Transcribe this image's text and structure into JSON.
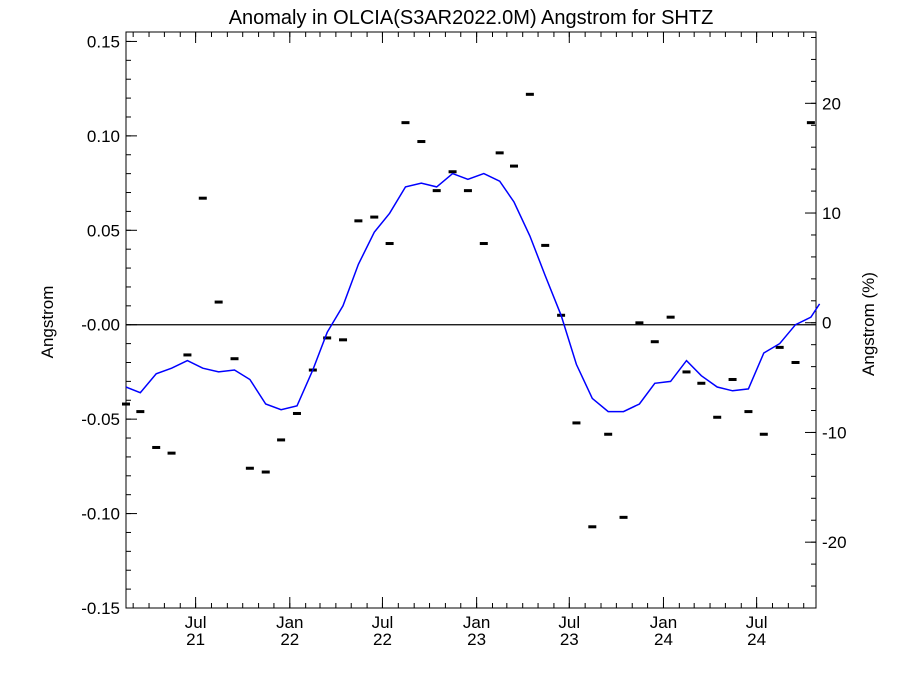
{
  "chart_data": {
    "type": "line",
    "title": "Anomaly in OLCIA(S3AR2022.0M) Angstrom for SHTZ",
    "ylabel": "Angstrom",
    "y2label": "Angstrom (%)",
    "ylim": [
      -0.15,
      0.155
    ],
    "y2lim": [
      -26,
      26.5
    ],
    "xlim": [
      "2021-02-15",
      "2024-10-25"
    ],
    "y_ticks": [
      {
        "value": 0.15,
        "label": "0.15"
      },
      {
        "value": 0.1,
        "label": "0.10"
      },
      {
        "value": 0.05,
        "label": "0.05"
      },
      {
        "value": 0.0,
        "label": "-0.00"
      },
      {
        "value": -0.05,
        "label": "-0.05"
      },
      {
        "value": -0.1,
        "label": "-0.10"
      },
      {
        "value": -0.15,
        "label": "-0.15"
      }
    ],
    "y2_ticks": [
      {
        "value": 20,
        "label": "20"
      },
      {
        "value": 10,
        "label": "10"
      },
      {
        "value": 0,
        "label": "0"
      },
      {
        "value": -10,
        "label": "-10"
      },
      {
        "value": -20,
        "label": "-20"
      }
    ],
    "x_ticks": [
      {
        "date": "2021-07-01",
        "month": "Jul",
        "year": "21"
      },
      {
        "date": "2022-01-01",
        "month": "Jan",
        "year": "22"
      },
      {
        "date": "2022-07-01",
        "month": "Jul",
        "year": "22"
      },
      {
        "date": "2023-01-01",
        "month": "Jan",
        "year": "23"
      },
      {
        "date": "2023-07-01",
        "month": "Jul",
        "year": "23"
      },
      {
        "date": "2024-01-01",
        "month": "Jan",
        "year": "24"
      },
      {
        "date": "2024-07-01",
        "month": "Jul",
        "year": "24"
      }
    ],
    "zero_line": true,
    "series": [
      {
        "kind": "points",
        "color": "#000000",
        "points": [
          {
            "x": "2021-02-15",
            "y": -0.042
          },
          {
            "x": "2021-03-15",
            "y": -0.046
          },
          {
            "x": "2021-04-15",
            "y": -0.065
          },
          {
            "x": "2021-05-15",
            "y": -0.068
          },
          {
            "x": "2021-06-15",
            "y": -0.016
          },
          {
            "x": "2021-07-15",
            "y": 0.067
          },
          {
            "x": "2021-08-15",
            "y": 0.012
          },
          {
            "x": "2021-09-15",
            "y": -0.018
          },
          {
            "x": "2021-10-15",
            "y": -0.076
          },
          {
            "x": "2021-11-15",
            "y": -0.078
          },
          {
            "x": "2021-12-15",
            "y": -0.061
          },
          {
            "x": "2022-01-15",
            "y": -0.047
          },
          {
            "x": "2022-02-15",
            "y": -0.024
          },
          {
            "x": "2022-03-15",
            "y": -0.007
          },
          {
            "x": "2022-04-15",
            "y": -0.008
          },
          {
            "x": "2022-05-15",
            "y": 0.055
          },
          {
            "x": "2022-06-15",
            "y": 0.057
          },
          {
            "x": "2022-07-15",
            "y": 0.043
          },
          {
            "x": "2022-08-15",
            "y": 0.107
          },
          {
            "x": "2022-09-15",
            "y": 0.097
          },
          {
            "x": "2022-10-15",
            "y": 0.071
          },
          {
            "x": "2022-11-15",
            "y": 0.081
          },
          {
            "x": "2022-12-15",
            "y": 0.071
          },
          {
            "x": "2023-01-15",
            "y": 0.043
          },
          {
            "x": "2023-02-15",
            "y": 0.091
          },
          {
            "x": "2023-03-15",
            "y": 0.084
          },
          {
            "x": "2023-04-15",
            "y": 0.122
          },
          {
            "x": "2023-05-15",
            "y": 0.042
          },
          {
            "x": "2023-06-15",
            "y": 0.005
          },
          {
            "x": "2023-07-15",
            "y": -0.052
          },
          {
            "x": "2023-08-15",
            "y": -0.107
          },
          {
            "x": "2023-09-15",
            "y": -0.058
          },
          {
            "x": "2023-10-15",
            "y": -0.102
          },
          {
            "x": "2023-11-15",
            "y": 0.001
          },
          {
            "x": "2023-12-15",
            "y": -0.009
          },
          {
            "x": "2024-01-15",
            "y": 0.004
          },
          {
            "x": "2024-02-15",
            "y": -0.025
          },
          {
            "x": "2024-03-15",
            "y": -0.031
          },
          {
            "x": "2024-04-15",
            "y": -0.049
          },
          {
            "x": "2024-05-15",
            "y": -0.029
          },
          {
            "x": "2024-06-15",
            "y": -0.046
          },
          {
            "x": "2024-07-15",
            "y": -0.058
          },
          {
            "x": "2024-08-15",
            "y": -0.012
          },
          {
            "x": "2024-09-15",
            "y": -0.02
          },
          {
            "x": "2024-10-15",
            "y": 0.107
          }
        ]
      },
      {
        "kind": "line",
        "color": "#0000ff",
        "points": [
          {
            "x": "2021-02-15",
            "y": -0.033
          },
          {
            "x": "2021-03-15",
            "y": -0.036
          },
          {
            "x": "2021-04-15",
            "y": -0.026
          },
          {
            "x": "2021-05-15",
            "y": -0.023
          },
          {
            "x": "2021-06-15",
            "y": -0.019
          },
          {
            "x": "2021-07-15",
            "y": -0.023
          },
          {
            "x": "2021-08-15",
            "y": -0.025
          },
          {
            "x": "2021-09-15",
            "y": -0.024
          },
          {
            "x": "2021-10-15",
            "y": -0.029
          },
          {
            "x": "2021-11-15",
            "y": -0.042
          },
          {
            "x": "2021-12-15",
            "y": -0.045
          },
          {
            "x": "2022-01-15",
            "y": -0.043
          },
          {
            "x": "2022-02-15",
            "y": -0.024
          },
          {
            "x": "2022-03-15",
            "y": -0.004
          },
          {
            "x": "2022-04-15",
            "y": 0.01
          },
          {
            "x": "2022-05-15",
            "y": 0.032
          },
          {
            "x": "2022-06-15",
            "y": 0.049
          },
          {
            "x": "2022-07-15",
            "y": 0.059
          },
          {
            "x": "2022-08-15",
            "y": 0.073
          },
          {
            "x": "2022-09-15",
            "y": 0.075
          },
          {
            "x": "2022-10-15",
            "y": 0.073
          },
          {
            "x": "2022-11-15",
            "y": 0.08
          },
          {
            "x": "2022-12-15",
            "y": 0.077
          },
          {
            "x": "2023-01-15",
            "y": 0.08
          },
          {
            "x": "2023-02-15",
            "y": 0.076
          },
          {
            "x": "2023-03-15",
            "y": 0.065
          },
          {
            "x": "2023-04-15",
            "y": 0.047
          },
          {
            "x": "2023-05-15",
            "y": 0.026
          },
          {
            "x": "2023-06-15",
            "y": 0.005
          },
          {
            "x": "2023-07-15",
            "y": -0.021
          },
          {
            "x": "2023-08-15",
            "y": -0.039
          },
          {
            "x": "2023-09-15",
            "y": -0.046
          },
          {
            "x": "2023-10-15",
            "y": -0.046
          },
          {
            "x": "2023-11-15",
            "y": -0.042
          },
          {
            "x": "2023-12-15",
            "y": -0.031
          },
          {
            "x": "2024-01-15",
            "y": -0.03
          },
          {
            "x": "2024-02-15",
            "y": -0.019
          },
          {
            "x": "2024-03-15",
            "y": -0.027
          },
          {
            "x": "2024-04-15",
            "y": -0.033
          },
          {
            "x": "2024-05-15",
            "y": -0.035
          },
          {
            "x": "2024-06-15",
            "y": -0.034
          },
          {
            "x": "2024-07-15",
            "y": -0.015
          },
          {
            "x": "2024-08-15",
            "y": -0.01
          },
          {
            "x": "2024-09-15",
            "y": 0.0
          },
          {
            "x": "2024-10-15",
            "y": 0.004
          },
          {
            "x": "2024-11-01",
            "y": 0.011
          }
        ]
      }
    ]
  }
}
